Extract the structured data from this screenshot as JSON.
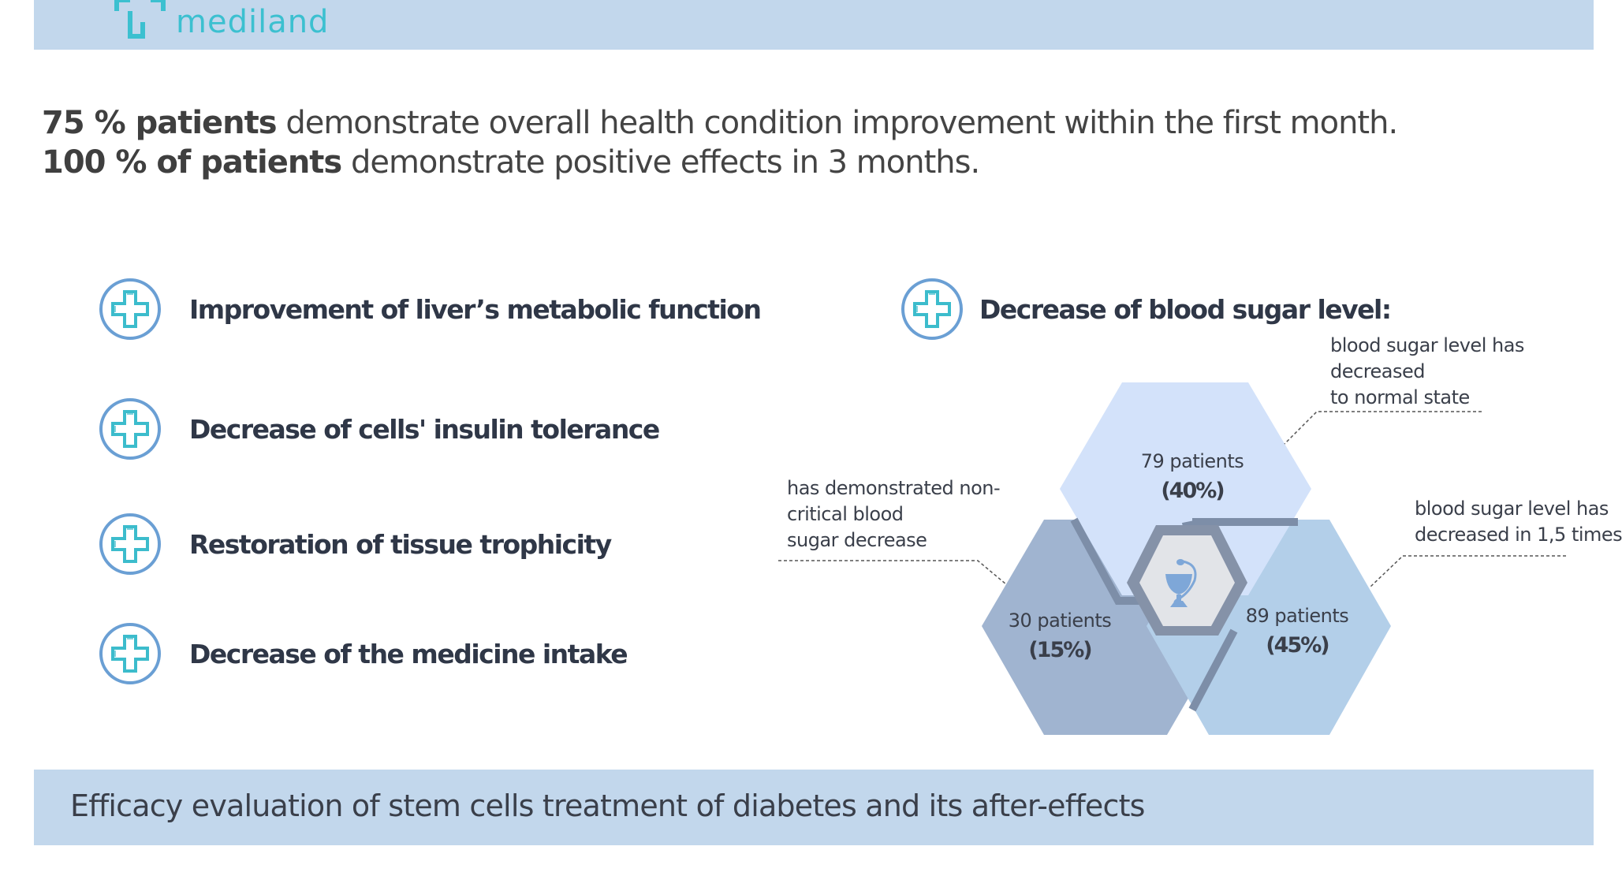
{
  "logo": {
    "text": "mediland",
    "color": "#3cc0d0"
  },
  "headline": {
    "line1_bold": "75 % patients",
    "line1_rest": "demonstrate overall health condition improvement within the first month.",
    "line2_bold": "100 % of patients",
    "line2_rest": "demonstrate positive effects in 3 months."
  },
  "features": [
    {
      "label": "Improvement of liver’s metabolic function",
      "icon": "medical-cross-icon"
    },
    {
      "label": "Decrease of cells' insulin tolerance",
      "icon": "medical-cross-icon"
    },
    {
      "label": "Restoration of tissue trophicity",
      "icon": "medical-cross-icon"
    },
    {
      "label": "Decrease of the medicine intake",
      "icon": "medical-cross-icon"
    }
  ],
  "blood_sugar": {
    "title": "Decrease of blood sugar level:",
    "center_icon": "bowl-of-hygieia-icon",
    "groups": [
      {
        "patients": "79 patients",
        "percent": "(40%)",
        "value": 40,
        "callout": [
          "blood sugar level has",
          "decreased",
          "to normal state"
        ],
        "color": "#d3e2fa"
      },
      {
        "patients": "30 patients",
        "percent": "(15%)",
        "value": 15,
        "callout": [
          "has demonstrated non-",
          "critical blood",
          "sugar decrease"
        ],
        "color": "#a0b4d0"
      },
      {
        "patients": "89 patients",
        "percent": "(45%)",
        "value": 45,
        "callout": [
          "blood sugar level has",
          "decreased in 1,5 times"
        ],
        "color": "#b3cfe9"
      }
    ]
  },
  "footer": {
    "title": "Efficacy evaluation of stem cells treatment of diabetes and its after-effects"
  },
  "colors": {
    "band": "#c2d7ec",
    "icon_ring": "#6a9fd4",
    "icon_cross": "#3cbccc",
    "text": "#2f3747"
  }
}
